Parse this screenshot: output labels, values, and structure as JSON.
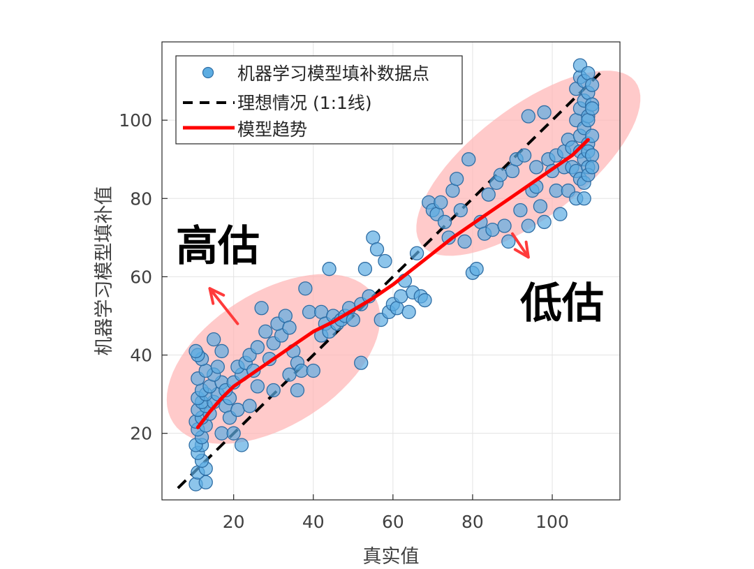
{
  "chart_data": {
    "type": "scatter",
    "xlabel": "真实值",
    "ylabel": "机器学习模型填补值",
    "xlim": [
      2,
      117
    ],
    "ylim": [
      3,
      120
    ],
    "xticks": [
      20,
      40,
      60,
      80,
      100
    ],
    "yticks": [
      20,
      40,
      60,
      80,
      100
    ],
    "grid": true,
    "legend_position": "top-left",
    "legend": [
      {
        "label": "机器学习模型填补数据点",
        "style": "marker",
        "color": "#5dade2"
      },
      {
        "label": "理想情况 (1:1线)",
        "style": "dashed",
        "color": "#000000"
      },
      {
        "label": "模型趋势",
        "style": "solid",
        "color": "#ff0000"
      }
    ],
    "colors": {
      "points_fill": "#5dade2",
      "points_edge": "#2e6da4",
      "ideal_line": "#000000",
      "trend_line": "#ff0000",
      "ellipse": "#ffb3b3",
      "arrow": "#ff3b3b"
    },
    "ideal_line": {
      "x": [
        6,
        112
      ],
      "y": [
        6,
        112
      ]
    },
    "trend": {
      "x": [
        11,
        14,
        17,
        20,
        25,
        30,
        35,
        40,
        45,
        50,
        55,
        60,
        65,
        70,
        75,
        80,
        85,
        90,
        95,
        100,
        105,
        109
      ],
      "y": [
        21.5,
        25.5,
        29,
        32,
        35.5,
        39,
        42.5,
        46,
        48.5,
        51.5,
        54.5,
        58,
        62,
        66,
        70,
        73.5,
        77,
        80.5,
        84,
        87.5,
        91,
        95
      ]
    },
    "ellipses": [
      {
        "name": "overestimate",
        "cx": 30,
        "cy": 39,
        "rx": 30,
        "ry": 17,
        "angle_deg": 33
      },
      {
        "name": "underestimate",
        "cx": 94,
        "cy": 89,
        "rx": 34,
        "ry": 14,
        "angle_deg": 38
      }
    ],
    "annotations": [
      {
        "text": "高估",
        "x": 10,
        "y": 71
      },
      {
        "text": "低估",
        "x": 91,
        "y": 46
      }
    ],
    "arrows": [
      {
        "from": [
          21,
          48
        ],
        "to": [
          14,
          57
        ]
      },
      {
        "from": [
          90,
          71
        ],
        "to": [
          94,
          65
        ]
      }
    ],
    "points": [
      [
        10.5,
        7
      ],
      [
        13,
        7.5
      ],
      [
        11,
        10
      ],
      [
        13,
        11
      ],
      [
        12,
        13
      ],
      [
        11,
        15
      ],
      [
        12,
        17
      ],
      [
        10.5,
        17
      ],
      [
        12,
        19
      ],
      [
        11,
        21
      ],
      [
        13,
        22
      ],
      [
        10.5,
        23
      ],
      [
        12,
        24
      ],
      [
        14,
        25
      ],
      [
        11,
        26
      ],
      [
        13,
        27
      ],
      [
        12,
        28
      ],
      [
        15,
        28
      ],
      [
        11,
        29
      ],
      [
        13,
        30
      ],
      [
        16,
        30
      ],
      [
        12,
        31
      ],
      [
        14,
        32
      ],
      [
        17,
        33
      ],
      [
        11,
        34
      ],
      [
        15,
        35
      ],
      [
        13,
        36
      ],
      [
        16,
        37
      ],
      [
        12,
        39
      ],
      [
        11,
        40
      ],
      [
        10.5,
        41
      ],
      [
        17,
        41
      ],
      [
        15,
        44
      ],
      [
        18,
        27
      ],
      [
        19,
        24
      ],
      [
        17,
        20
      ],
      [
        20,
        20
      ],
      [
        22,
        17
      ],
      [
        21,
        26
      ],
      [
        19,
        29
      ],
      [
        18,
        31
      ],
      [
        20,
        33
      ],
      [
        22,
        35
      ],
      [
        21,
        37
      ],
      [
        23,
        38
      ],
      [
        25,
        36
      ],
      [
        24,
        40
      ],
      [
        26,
        42
      ],
      [
        28,
        46
      ],
      [
        27,
        52
      ],
      [
        29,
        39
      ],
      [
        30,
        43
      ],
      [
        32,
        45
      ],
      [
        31,
        48
      ],
      [
        33,
        50
      ],
      [
        34,
        47
      ],
      [
        35,
        41
      ],
      [
        36,
        38
      ],
      [
        37,
        36
      ],
      [
        36,
        31
      ],
      [
        30,
        31
      ],
      [
        26,
        32
      ],
      [
        24,
        27
      ],
      [
        34,
        35
      ],
      [
        38,
        57
      ],
      [
        39,
        51
      ],
      [
        40,
        36
      ],
      [
        42,
        45
      ],
      [
        42,
        51
      ],
      [
        43,
        48
      ],
      [
        44,
        46
      ],
      [
        45,
        50
      ],
      [
        46,
        48
      ],
      [
        47,
        49
      ],
      [
        48,
        50
      ],
      [
        49,
        52
      ],
      [
        50,
        49
      ],
      [
        52,
        38
      ],
      [
        52,
        53
      ],
      [
        54,
        55
      ],
      [
        44,
        62
      ],
      [
        53,
        62
      ],
      [
        55,
        70
      ],
      [
        56,
        67
      ],
      [
        57,
        49
      ],
      [
        58,
        64
      ],
      [
        59,
        51
      ],
      [
        60,
        53
      ],
      [
        61,
        52
      ],
      [
        62,
        55
      ],
      [
        63,
        59
      ],
      [
        64,
        51
      ],
      [
        65,
        56
      ],
      [
        66,
        66
      ],
      [
        67,
        55
      ],
      [
        68,
        54
      ],
      [
        69,
        79
      ],
      [
        70,
        77
      ],
      [
        71,
        76
      ],
      [
        72,
        79
      ],
      [
        73,
        74
      ],
      [
        74,
        70
      ],
      [
        75,
        82
      ],
      [
        76,
        85
      ],
      [
        77,
        77
      ],
      [
        78,
        69
      ],
      [
        79,
        90
      ],
      [
        80,
        61
      ],
      [
        81,
        62
      ],
      [
        82,
        74
      ],
      [
        83,
        71
      ],
      [
        84,
        81
      ],
      [
        85,
        72
      ],
      [
        86,
        84
      ],
      [
        87,
        86
      ],
      [
        88,
        73
      ],
      [
        89,
        69
      ],
      [
        90,
        87
      ],
      [
        91,
        90
      ],
      [
        92,
        77
      ],
      [
        93,
        91
      ],
      [
        94,
        73
      ],
      [
        94,
        101
      ],
      [
        95,
        82
      ],
      [
        96,
        88
      ],
      [
        96,
        83
      ],
      [
        97,
        78
      ],
      [
        98,
        74
      ],
      [
        98,
        102
      ],
      [
        99,
        90
      ],
      [
        100,
        87
      ],
      [
        101,
        91
      ],
      [
        101,
        82
      ],
      [
        102,
        76
      ],
      [
        103,
        92
      ],
      [
        103,
        88
      ],
      [
        104,
        95
      ],
      [
        104,
        82
      ],
      [
        105,
        93
      ],
      [
        105,
        88
      ],
      [
        106,
        87
      ],
      [
        106,
        100
      ],
      [
        106,
        108
      ],
      [
        106,
        80
      ],
      [
        107,
        111
      ],
      [
        107,
        114
      ],
      [
        107,
        103
      ],
      [
        107,
        96
      ],
      [
        107,
        92
      ],
      [
        107,
        85
      ],
      [
        108,
        105
      ],
      [
        108,
        98
      ],
      [
        108,
        90
      ],
      [
        108,
        84
      ],
      [
        108,
        80
      ],
      [
        108,
        110
      ],
      [
        109,
        107
      ],
      [
        109,
        101
      ],
      [
        109,
        94
      ],
      [
        109,
        88
      ],
      [
        109,
        86
      ],
      [
        109,
        100
      ],
      [
        109,
        112
      ],
      [
        109,
        92
      ],
      [
        110,
        109
      ],
      [
        110,
        104
      ],
      [
        110,
        96
      ],
      [
        110,
        91
      ],
      [
        110,
        88
      ],
      [
        110,
        103
      ]
    ]
  }
}
